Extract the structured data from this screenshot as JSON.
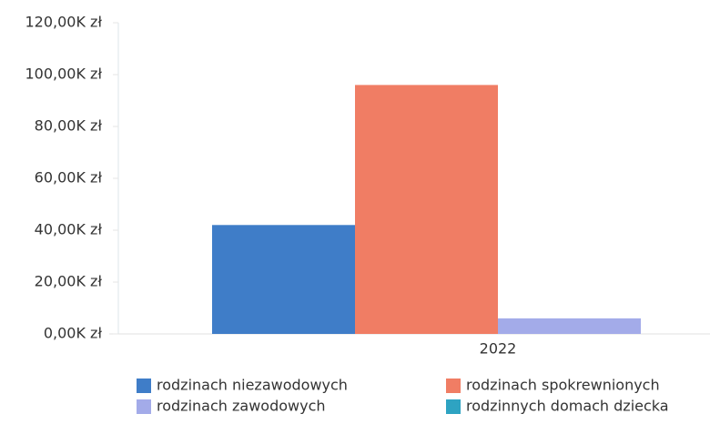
{
  "chart_data": {
    "type": "bar",
    "categories": [
      "2022"
    ],
    "series": [
      {
        "name": "rodzinach niezawodowych",
        "color": "#3f7dc8",
        "values": [
          42000
        ]
      },
      {
        "name": "rodzinach spokrewnionych",
        "color": "#f07d64",
        "values": [
          96000
        ]
      },
      {
        "name": "rodzinach zawodowych",
        "color": "#a3abe9",
        "values": [
          6000
        ]
      },
      {
        "name": "rodzinnych domach dziecka",
        "color": "#2ea3c2",
        "values": [
          0
        ]
      }
    ],
    "ylim": [
      0,
      120000
    ],
    "yticks": [
      {
        "value": 0,
        "label": "0,00K zł"
      },
      {
        "value": 20000,
        "label": "20,00K zł"
      },
      {
        "value": 40000,
        "label": "40,00K zł"
      },
      {
        "value": 60000,
        "label": "60,00K zł"
      },
      {
        "value": 80000,
        "label": "80,00K zł"
      },
      {
        "value": 100000,
        "label": "100,00K zł"
      },
      {
        "value": 120000,
        "label": "120,00K zł"
      }
    ],
    "grid": false
  }
}
